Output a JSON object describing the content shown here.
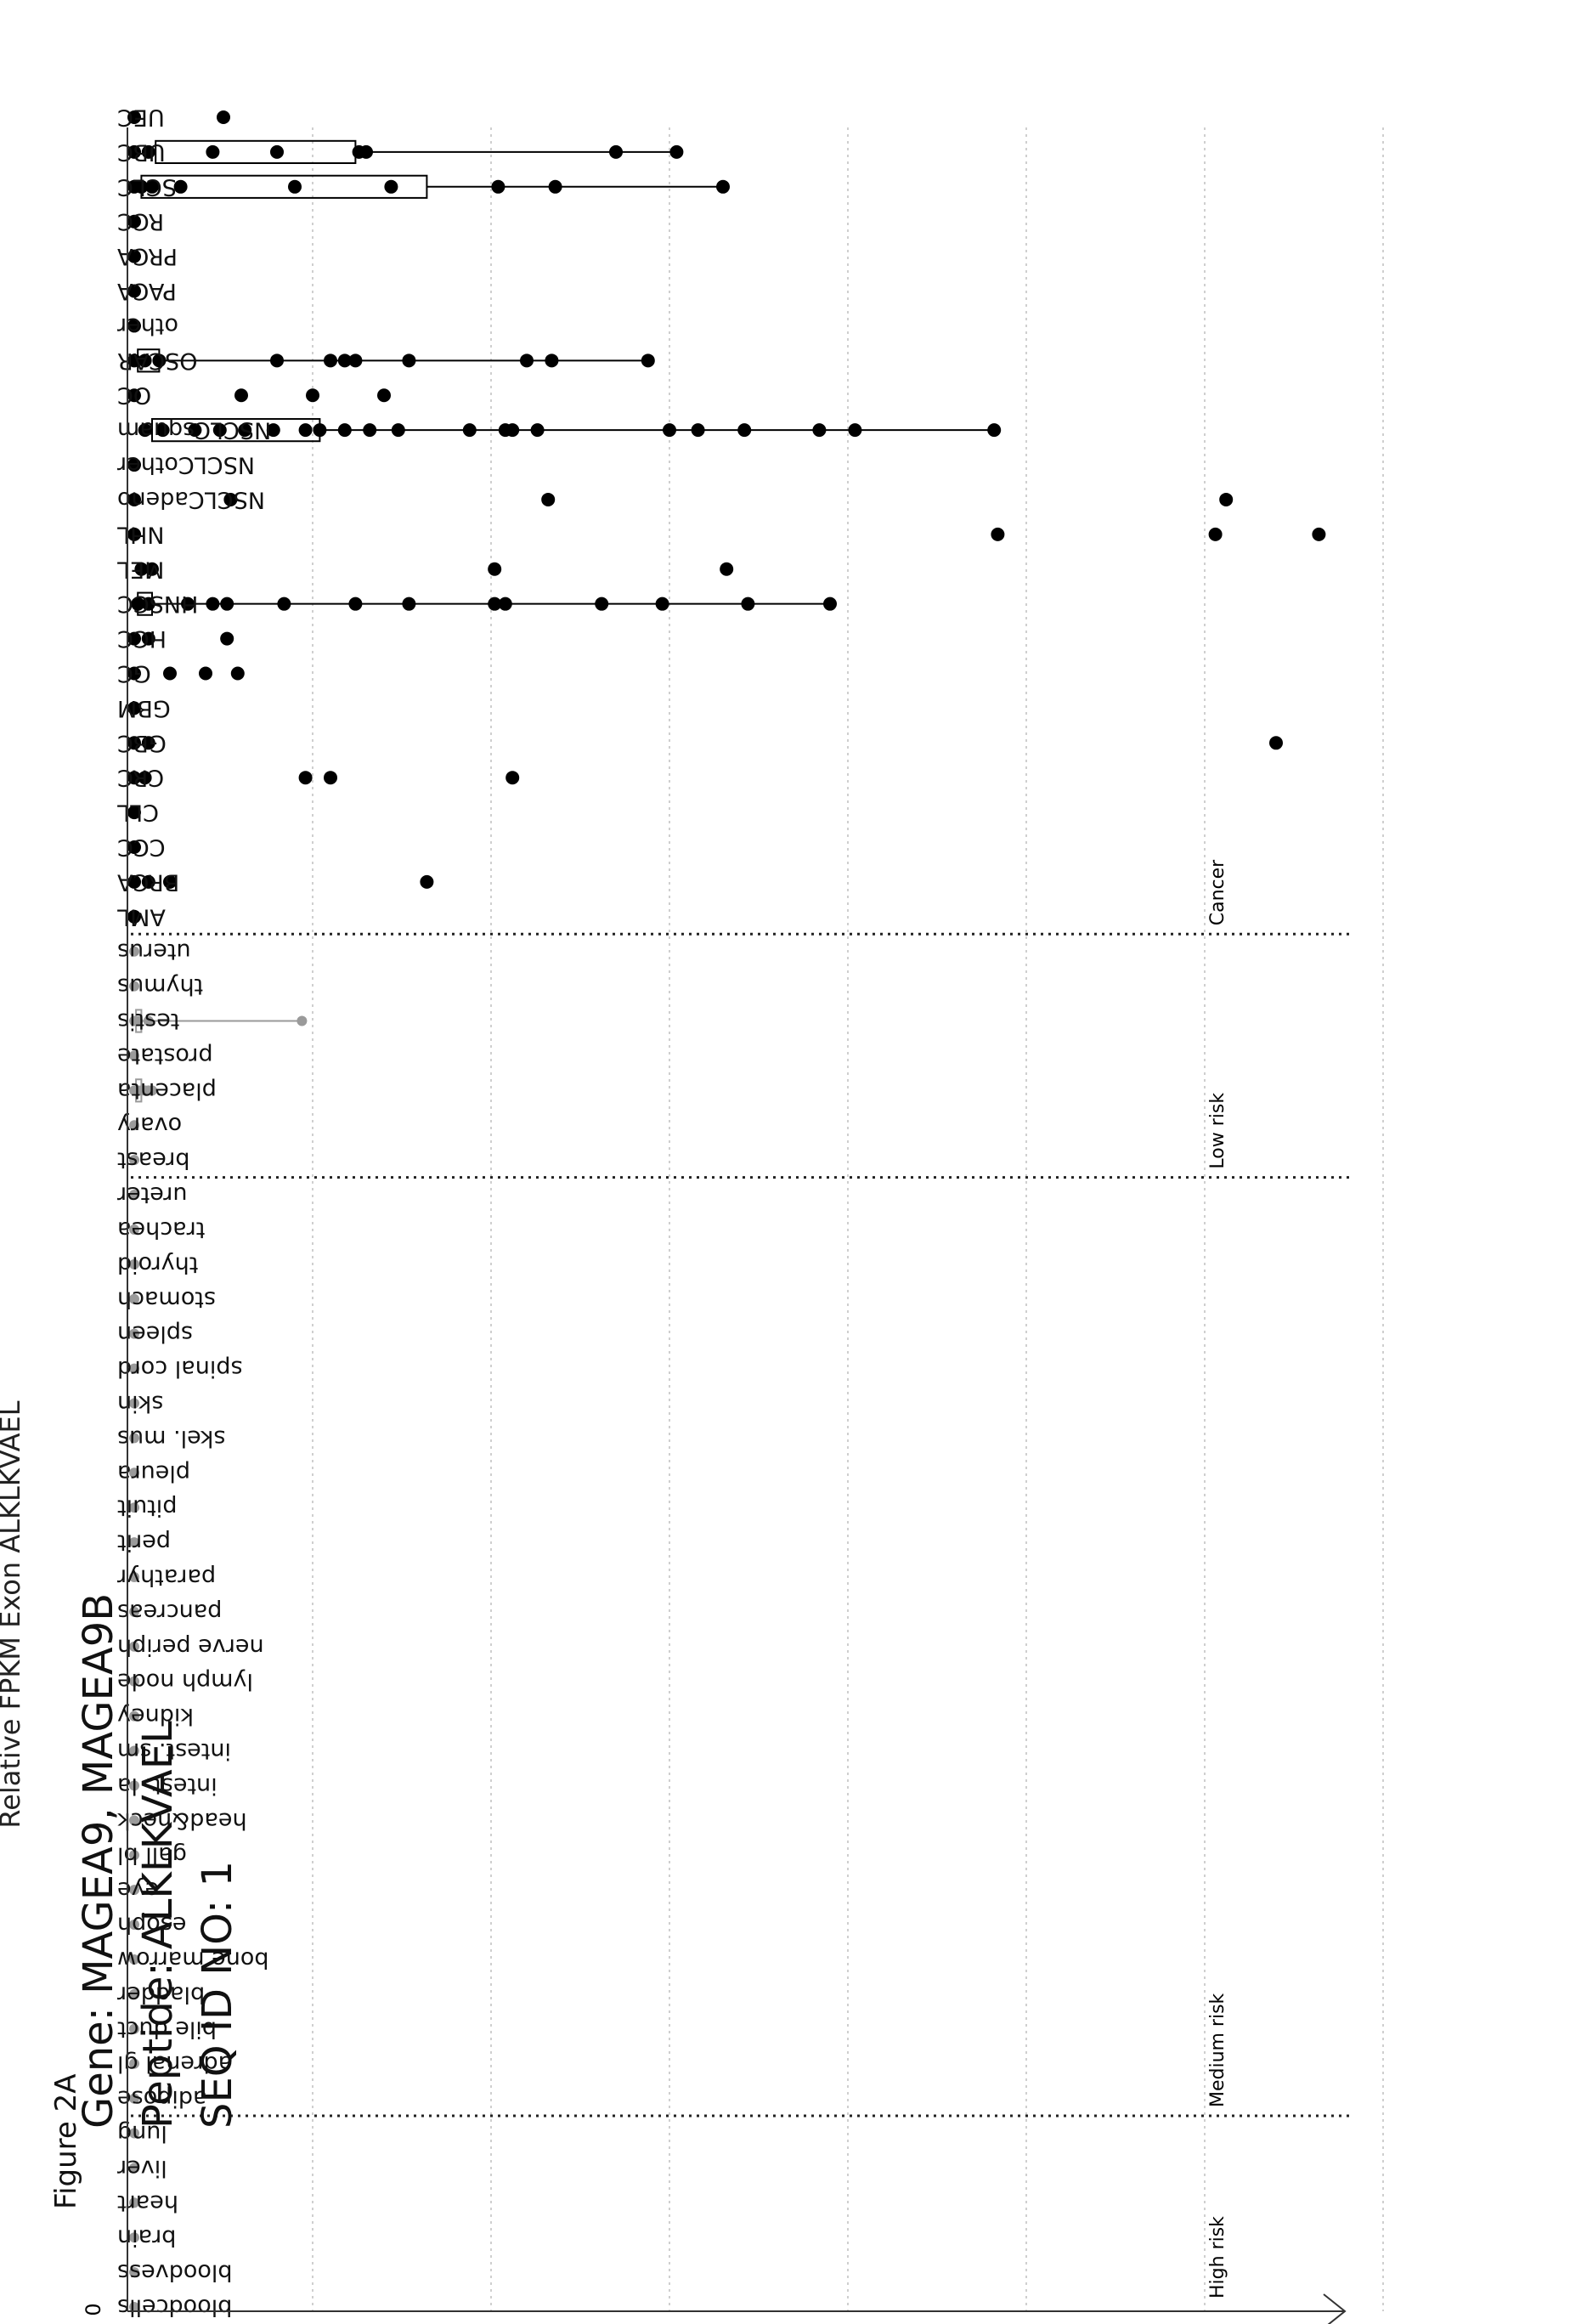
{
  "figure_label": "Figure 2A",
  "header": {
    "gene": "Gene: MAGEA9, MAGEA9B",
    "peptide": "Peptide: ALKLKVAEL",
    "seq_id": "SEQ ID NO: 1"
  },
  "chart_data": {
    "type": "scatter",
    "ylabel": "Relative FPKM Exon ALKLKVAEL",
    "y_tick_labels": [
      "0"
    ],
    "grid": true,
    "groups": [
      {
        "label": "High risk",
        "color": "#9a9a9a"
      },
      {
        "label": "Medium risk",
        "color": "#9a9a9a"
      },
      {
        "label": "Low risk",
        "color": "#9a9a9a"
      },
      {
        "label": "Cancer",
        "color": "#000000"
      }
    ],
    "categories": [
      {
        "name": "bloodcells",
        "group": 0,
        "points": [
          0
        ]
      },
      {
        "name": "bloodvess",
        "group": 0,
        "points": [
          0
        ]
      },
      {
        "name": "brain",
        "group": 0,
        "points": [
          0
        ]
      },
      {
        "name": "heart",
        "group": 0,
        "points": [
          0
        ]
      },
      {
        "name": "liver",
        "group": 0,
        "points": [
          0
        ]
      },
      {
        "name": "lung",
        "group": 0,
        "points": [
          0
        ]
      },
      {
        "name": "adipose",
        "group": 1,
        "points": [
          0
        ]
      },
      {
        "name": "adrenal gl",
        "group": 1,
        "points": [
          0
        ]
      },
      {
        "name": "bile duct",
        "group": 1,
        "points": [
          0
        ]
      },
      {
        "name": "bladder",
        "group": 1,
        "points": [
          0
        ]
      },
      {
        "name": "bone marrow",
        "group": 1,
        "points": [
          0
        ]
      },
      {
        "name": "esoph",
        "group": 1,
        "points": [
          0
        ]
      },
      {
        "name": "eye",
        "group": 1,
        "points": [
          0
        ]
      },
      {
        "name": "gall bl",
        "group": 1,
        "points": [
          0
        ]
      },
      {
        "name": "head&neck",
        "group": 1,
        "points": [
          0
        ]
      },
      {
        "name": "intest. la",
        "group": 1,
        "points": [
          0
        ]
      },
      {
        "name": "intest. sm",
        "group": 1,
        "points": [
          0
        ]
      },
      {
        "name": "kidney",
        "group": 1,
        "points": [
          0
        ]
      },
      {
        "name": "lymph node",
        "group": 1,
        "points": [
          0
        ]
      },
      {
        "name": "nerve periph",
        "group": 1,
        "points": [
          0
        ]
      },
      {
        "name": "pancreas",
        "group": 1,
        "points": [
          0
        ]
      },
      {
        "name": "parathyr",
        "group": 1,
        "points": [
          0
        ]
      },
      {
        "name": "perit",
        "group": 1,
        "points": [
          0
        ]
      },
      {
        "name": "pituit",
        "group": 1,
        "points": [
          0
        ]
      },
      {
        "name": "pleura",
        "group": 1,
        "points": [
          0
        ]
      },
      {
        "name": "skel. mus",
        "group": 1,
        "points": [
          0
        ]
      },
      {
        "name": "skin",
        "group": 1,
        "points": [
          0
        ]
      },
      {
        "name": "spinal cord",
        "group": 1,
        "points": [
          0
        ]
      },
      {
        "name": "spleen",
        "group": 1,
        "points": [
          0
        ]
      },
      {
        "name": "stomach",
        "group": 1,
        "points": [
          0
        ]
      },
      {
        "name": "thyroid",
        "group": 1,
        "points": [
          0
        ]
      },
      {
        "name": "trachea",
        "group": 1,
        "points": [
          0
        ]
      },
      {
        "name": "ureter",
        "group": 1,
        "points": [
          0
        ]
      },
      {
        "name": "breast",
        "group": 2,
        "points": [
          0
        ]
      },
      {
        "name": "ovary",
        "group": 2,
        "points": [
          0
        ]
      },
      {
        "name": "placenta",
        "group": 2,
        "points": [
          0,
          0.01,
          0.02,
          0.03,
          0.04,
          0.05
        ],
        "box": [
          0.005,
          0.02
        ]
      },
      {
        "name": "prostate",
        "group": 2,
        "points": [
          0
        ]
      },
      {
        "name": "testis",
        "group": 2,
        "points": [
          0,
          0.01,
          0.04,
          0.47
        ],
        "box": [
          0.005,
          0.02
        ]
      },
      {
        "name": "thymus",
        "group": 2,
        "points": [
          0
        ]
      },
      {
        "name": "uterus",
        "group": 2,
        "points": [
          0
        ]
      },
      {
        "name": "AML",
        "group": 3,
        "points": [
          0
        ]
      },
      {
        "name": "BRCA",
        "group": 3,
        "points": [
          0,
          0.04,
          0.1,
          0.82
        ]
      },
      {
        "name": "CCC",
        "group": 3,
        "points": [
          0
        ]
      },
      {
        "name": "CLL",
        "group": 3,
        "points": [
          0
        ]
      },
      {
        "name": "CRC",
        "group": 3,
        "points": [
          0,
          0.03,
          0.48,
          0.55,
          1.06
        ]
      },
      {
        "name": "GBC",
        "group": 3,
        "points": [
          0,
          0.04,
          3.2
        ]
      },
      {
        "name": "GBM",
        "group": 3,
        "points": [
          0
        ]
      },
      {
        "name": "GC",
        "group": 3,
        "points": [
          0,
          0.1,
          0.2,
          0.29
        ]
      },
      {
        "name": "HCC",
        "group": 3,
        "points": [
          0,
          0.04,
          0.26
        ]
      },
      {
        "name": "HNSCC",
        "group": 3,
        "points": [
          0.01,
          0.04,
          0.15,
          0.22,
          0.26,
          0.42,
          0.62,
          0.77,
          1.01,
          1.04,
          1.31,
          1.48,
          1.72,
          1.95
        ],
        "box": [
          0.01,
          0.05
        ]
      },
      {
        "name": "MEL",
        "group": 3,
        "points": [
          0.02,
          0.05,
          1.01,
          1.66
        ]
      },
      {
        "name": "NHL",
        "group": 3,
        "points": [
          0,
          2.42,
          3.03,
          3.32
        ]
      },
      {
        "name": "NSCLCadeno",
        "group": 3,
        "points": [
          0,
          0.27,
          1.16,
          3.06
        ]
      },
      {
        "name": "NSCLCother",
        "group": 3,
        "points": [
          0
        ]
      },
      {
        "name": "NSCLCsquam",
        "group": 3,
        "points": [
          0.03,
          0.08,
          0.17,
          0.24,
          0.31,
          0.39,
          0.48,
          0.52,
          0.59,
          0.66,
          0.74,
          0.94,
          1.04,
          1.06,
          1.13,
          1.5,
          1.58,
          1.71,
          1.92,
          2.02,
          2.41
        ],
        "box": [
          0.05,
          0.52
        ]
      },
      {
        "name": "OC",
        "group": 3,
        "points": [
          0,
          0.3,
          0.5,
          0.7
        ]
      },
      {
        "name": "OSCAR",
        "group": 3,
        "points": [
          0,
          0.03,
          0.07,
          0.4,
          0.55,
          0.59,
          0.62,
          0.77,
          1.1,
          1.17,
          1.44
        ],
        "box": [
          0.01,
          0.07
        ]
      },
      {
        "name": "other",
        "group": 3,
        "points": [
          0
        ]
      },
      {
        "name": "PACA",
        "group": 3,
        "points": [
          0
        ]
      },
      {
        "name": "PRCA",
        "group": 3,
        "points": [
          0
        ]
      },
      {
        "name": "RCC",
        "group": 3,
        "points": [
          0
        ]
      },
      {
        "name": "SCLC",
        "group": 3,
        "points": [
          0,
          0.02,
          0.05,
          0.13,
          0.45,
          0.72,
          1.02,
          1.18,
          1.65
        ],
        "box": [
          0.02,
          0.82
        ]
      },
      {
        "name": "UBC",
        "group": 3,
        "points": [
          0,
          0.04,
          0.22,
          0.4,
          0.63,
          0.65,
          1.35,
          1.52
        ],
        "box": [
          0.06,
          0.62
        ]
      },
      {
        "name": "UEC",
        "group": 3,
        "points": [
          0,
          0.25
        ]
      }
    ]
  }
}
